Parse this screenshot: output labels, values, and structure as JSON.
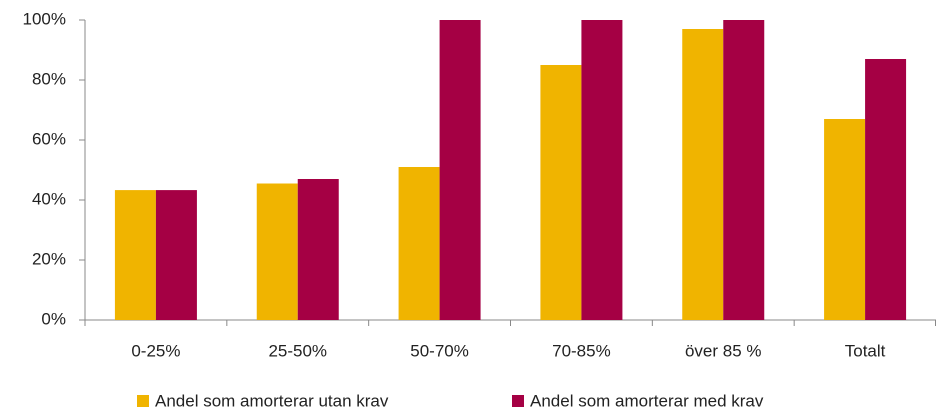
{
  "chart_data": {
    "type": "bar",
    "categories": [
      "0-25%",
      "25-50%",
      "50-70%",
      "70-85%",
      "över 85 %",
      "Totalt"
    ],
    "series": [
      {
        "name": "Andel som amorterar utan krav",
        "color": "#f0b400",
        "values": [
          43.3,
          45.5,
          51,
          85,
          97,
          67
        ]
      },
      {
        "name": "Andel som amorterar med krav",
        "color": "#a50044",
        "values": [
          43.3,
          47,
          100,
          100,
          100,
          87
        ]
      }
    ],
    "ylim": [
      0,
      100
    ],
    "yticks": [
      {
        "value": 0,
        "label": "0%"
      },
      {
        "value": 20,
        "label": "20%"
      },
      {
        "value": 40,
        "label": "40%"
      },
      {
        "value": 60,
        "label": "60%"
      },
      {
        "value": 80,
        "label": "80%"
      },
      {
        "value": 100,
        "label": "100%"
      }
    ],
    "grid": false
  }
}
